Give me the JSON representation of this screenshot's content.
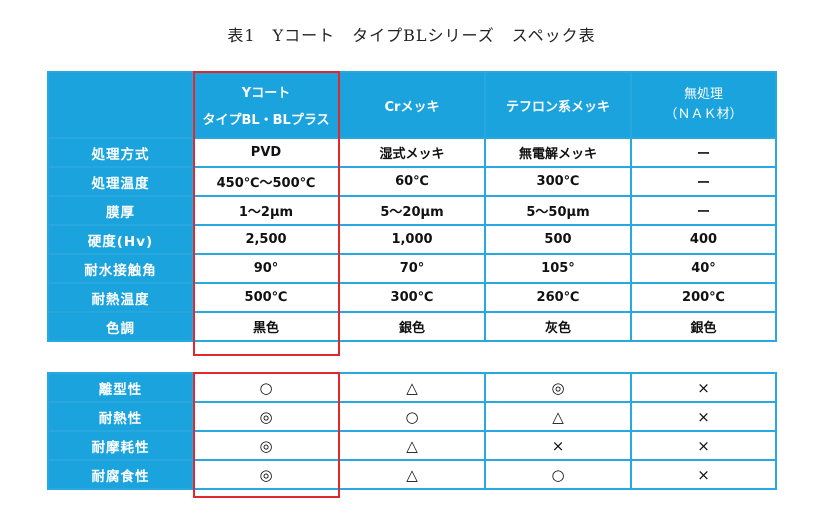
{
  "title": "表1　Yコート　タイプBLシリーズ　スペック表",
  "columns": {
    "ycoat_line1": "Yコート",
    "ycoat_line2": "タイプBL・BLプラス",
    "cr": "Crメッキ",
    "teflon": "テフロン系メッキ",
    "nak_line1": "無処理",
    "nak_line2": "（ＮＡＫ材）"
  },
  "spec_rows": [
    {
      "label": "処理方式",
      "values": [
        "PVD",
        "湿式メッキ",
        "無電解メッキ",
        "ー"
      ]
    },
    {
      "label": "処理温度",
      "values": [
        "450℃〜500℃",
        "60℃",
        "300℃",
        "ー"
      ]
    },
    {
      "label": "膜厚",
      "values": [
        "1〜2μm",
        "5〜20μm",
        "5〜50μm",
        "ー"
      ]
    },
    {
      "label": "硬度(Hv)",
      "values": [
        "2,500",
        "1,000",
        "500",
        "400"
      ]
    },
    {
      "label": "耐水接触角",
      "values": [
        "90°",
        "70°",
        "105°",
        "40°"
      ]
    },
    {
      "label": "耐熱温度",
      "values": [
        "500℃",
        "300℃",
        "260℃",
        "200℃"
      ]
    },
    {
      "label": "色調",
      "values": [
        "黒色",
        "銀色",
        "灰色",
        "銀色"
      ]
    }
  ],
  "rating_rows": [
    {
      "label": "離型性",
      "values": [
        "○",
        "△",
        "◎",
        "×"
      ]
    },
    {
      "label": "耐熱性",
      "values": [
        "◎",
        "○",
        "△",
        "×"
      ]
    },
    {
      "label": "耐摩耗性",
      "values": [
        "◎",
        "△",
        "×",
        "×"
      ]
    },
    {
      "label": "耐腐食性",
      "values": [
        "◎",
        "△",
        "○",
        "×"
      ]
    }
  ],
  "colors": {
    "header_blue": "#1aa3dd",
    "border_blue": "#29a8e0",
    "highlight_red": "#e0282e"
  }
}
